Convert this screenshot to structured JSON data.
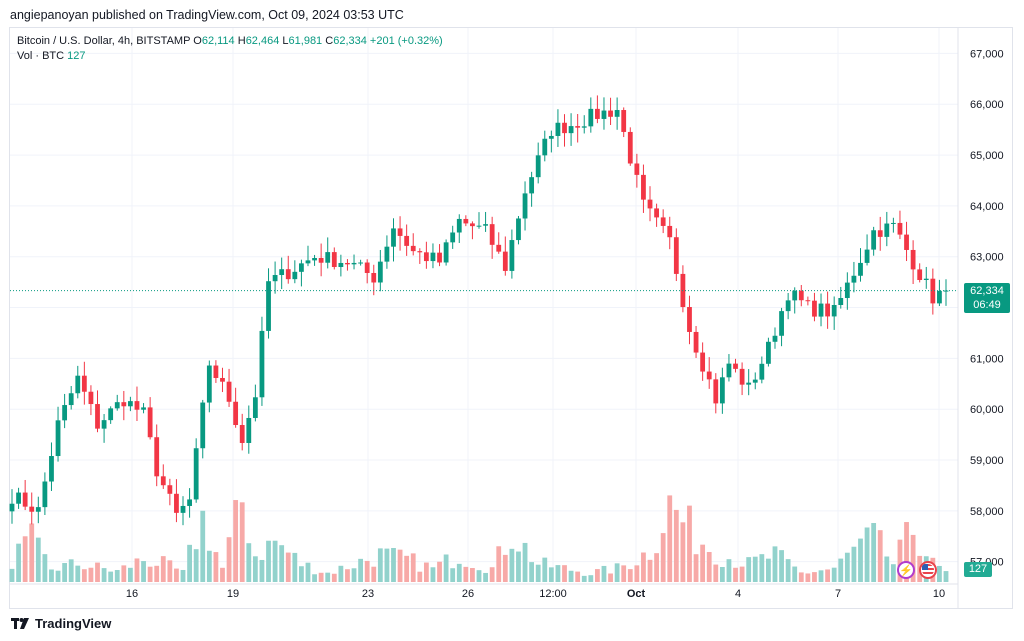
{
  "header": {
    "text": "angiepanoyan published on TradingView.com, Oct 09, 2024 03:53 UTC"
  },
  "legend": {
    "symbol": "Bitcoin / U.S. Dollar, 4h, BITSTAMP",
    "o_label": "O",
    "o": "62,114",
    "h_label": "H",
    "h": "62,464",
    "l_label": "L",
    "l": "61,981",
    "c_label": "C",
    "c": "62,334",
    "change": "+201 (+0.32%)",
    "vol_label": "Vol · BTC",
    "vol": "127"
  },
  "price_badge": {
    "price": "62,334",
    "countdown": "06:49"
  },
  "volume_badge": "127",
  "footer": {
    "brand": "TradingView"
  },
  "colors": {
    "up": "#089981",
    "down": "#f23645",
    "up_vol": "#92d2cc",
    "down_vol": "#f7a9a7",
    "grid": "#f0f3fa"
  },
  "chart_data": {
    "type": "candlestick",
    "title": "Bitcoin / U.S. Dollar, 4h, BITSTAMP",
    "y_ticks": [
      57000,
      58000,
      59000,
      60000,
      61000,
      62000,
      63000,
      64000,
      65000,
      66000,
      67000
    ],
    "x_ticks": [
      "16",
      "19",
      "23",
      "26",
      "12:00",
      "Oct",
      "4",
      "7",
      "10"
    ],
    "ylim": [
      56600,
      67500
    ],
    "last_price": 62334,
    "waypoints": [
      [
        0,
        58300
      ],
      [
        4,
        58000
      ],
      [
        7,
        59700
      ],
      [
        10,
        60600
      ],
      [
        13,
        59700
      ],
      [
        17,
        60200
      ],
      [
        20,
        59900
      ],
      [
        22,
        58800
      ],
      [
        25,
        57900
      ],
      [
        27,
        58200
      ],
      [
        30,
        60900
      ],
      [
        33,
        60200
      ],
      [
        35,
        59400
      ],
      [
        37,
        60300
      ],
      [
        39,
        62500
      ],
      [
        42,
        62700
      ],
      [
        46,
        63000
      ],
      [
        51,
        62900
      ],
      [
        55,
        62600
      ],
      [
        58,
        63600
      ],
      [
        61,
        63100
      ],
      [
        65,
        62900
      ],
      [
        68,
        63700
      ],
      [
        72,
        63500
      ],
      [
        75,
        62800
      ],
      [
        78,
        64300
      ],
      [
        82,
        65500
      ],
      [
        85,
        65600
      ],
      [
        89,
        65800
      ],
      [
        92,
        65900
      ],
      [
        96,
        64000
      ],
      [
        100,
        63300
      ],
      [
        103,
        61600
      ],
      [
        107,
        60200
      ],
      [
        109,
        60900
      ],
      [
        112,
        60400
      ],
      [
        115,
        61200
      ],
      [
        118,
        62300
      ],
      [
        121,
        62000
      ],
      [
        125,
        61900
      ],
      [
        128,
        62700
      ],
      [
        131,
        63500
      ],
      [
        134,
        63600
      ],
      [
        137,
        62900
      ],
      [
        140,
        62200
      ],
      [
        142,
        62334
      ]
    ],
    "volume_waypoints": [
      [
        0,
        0.25
      ],
      [
        3,
        0.45
      ],
      [
        6,
        0.15
      ],
      [
        10,
        0.2
      ],
      [
        16,
        0.12
      ],
      [
        20,
        0.25
      ],
      [
        23,
        0.2
      ],
      [
        26,
        0.1
      ],
      [
        29,
        0.7
      ],
      [
        32,
        0.15
      ],
      [
        35,
        0.9
      ],
      [
        37,
        0.3
      ],
      [
        40,
        0.45
      ],
      [
        44,
        0.2
      ],
      [
        48,
        0.1
      ],
      [
        52,
        0.2
      ],
      [
        56,
        0.3
      ],
      [
        60,
        0.25
      ],
      [
        64,
        0.15
      ],
      [
        68,
        0.3
      ],
      [
        73,
        0.15
      ],
      [
        76,
        0.55
      ],
      [
        80,
        0.2
      ],
      [
        84,
        0.15
      ],
      [
        88,
        0.1
      ],
      [
        92,
        0.15
      ],
      [
        95,
        0.25
      ],
      [
        97,
        0.35
      ],
      [
        100,
        0.85
      ],
      [
        104,
        0.5
      ],
      [
        108,
        0.3
      ],
      [
        112,
        0.2
      ],
      [
        116,
        0.3
      ],
      [
        120,
        0.1
      ],
      [
        125,
        0.15
      ],
      [
        128,
        0.35
      ],
      [
        131,
        0.5
      ],
      [
        134,
        0.2
      ],
      [
        137,
        0.6
      ],
      [
        140,
        0.2
      ],
      [
        142,
        0.1
      ]
    ],
    "candle_count": 143
  }
}
